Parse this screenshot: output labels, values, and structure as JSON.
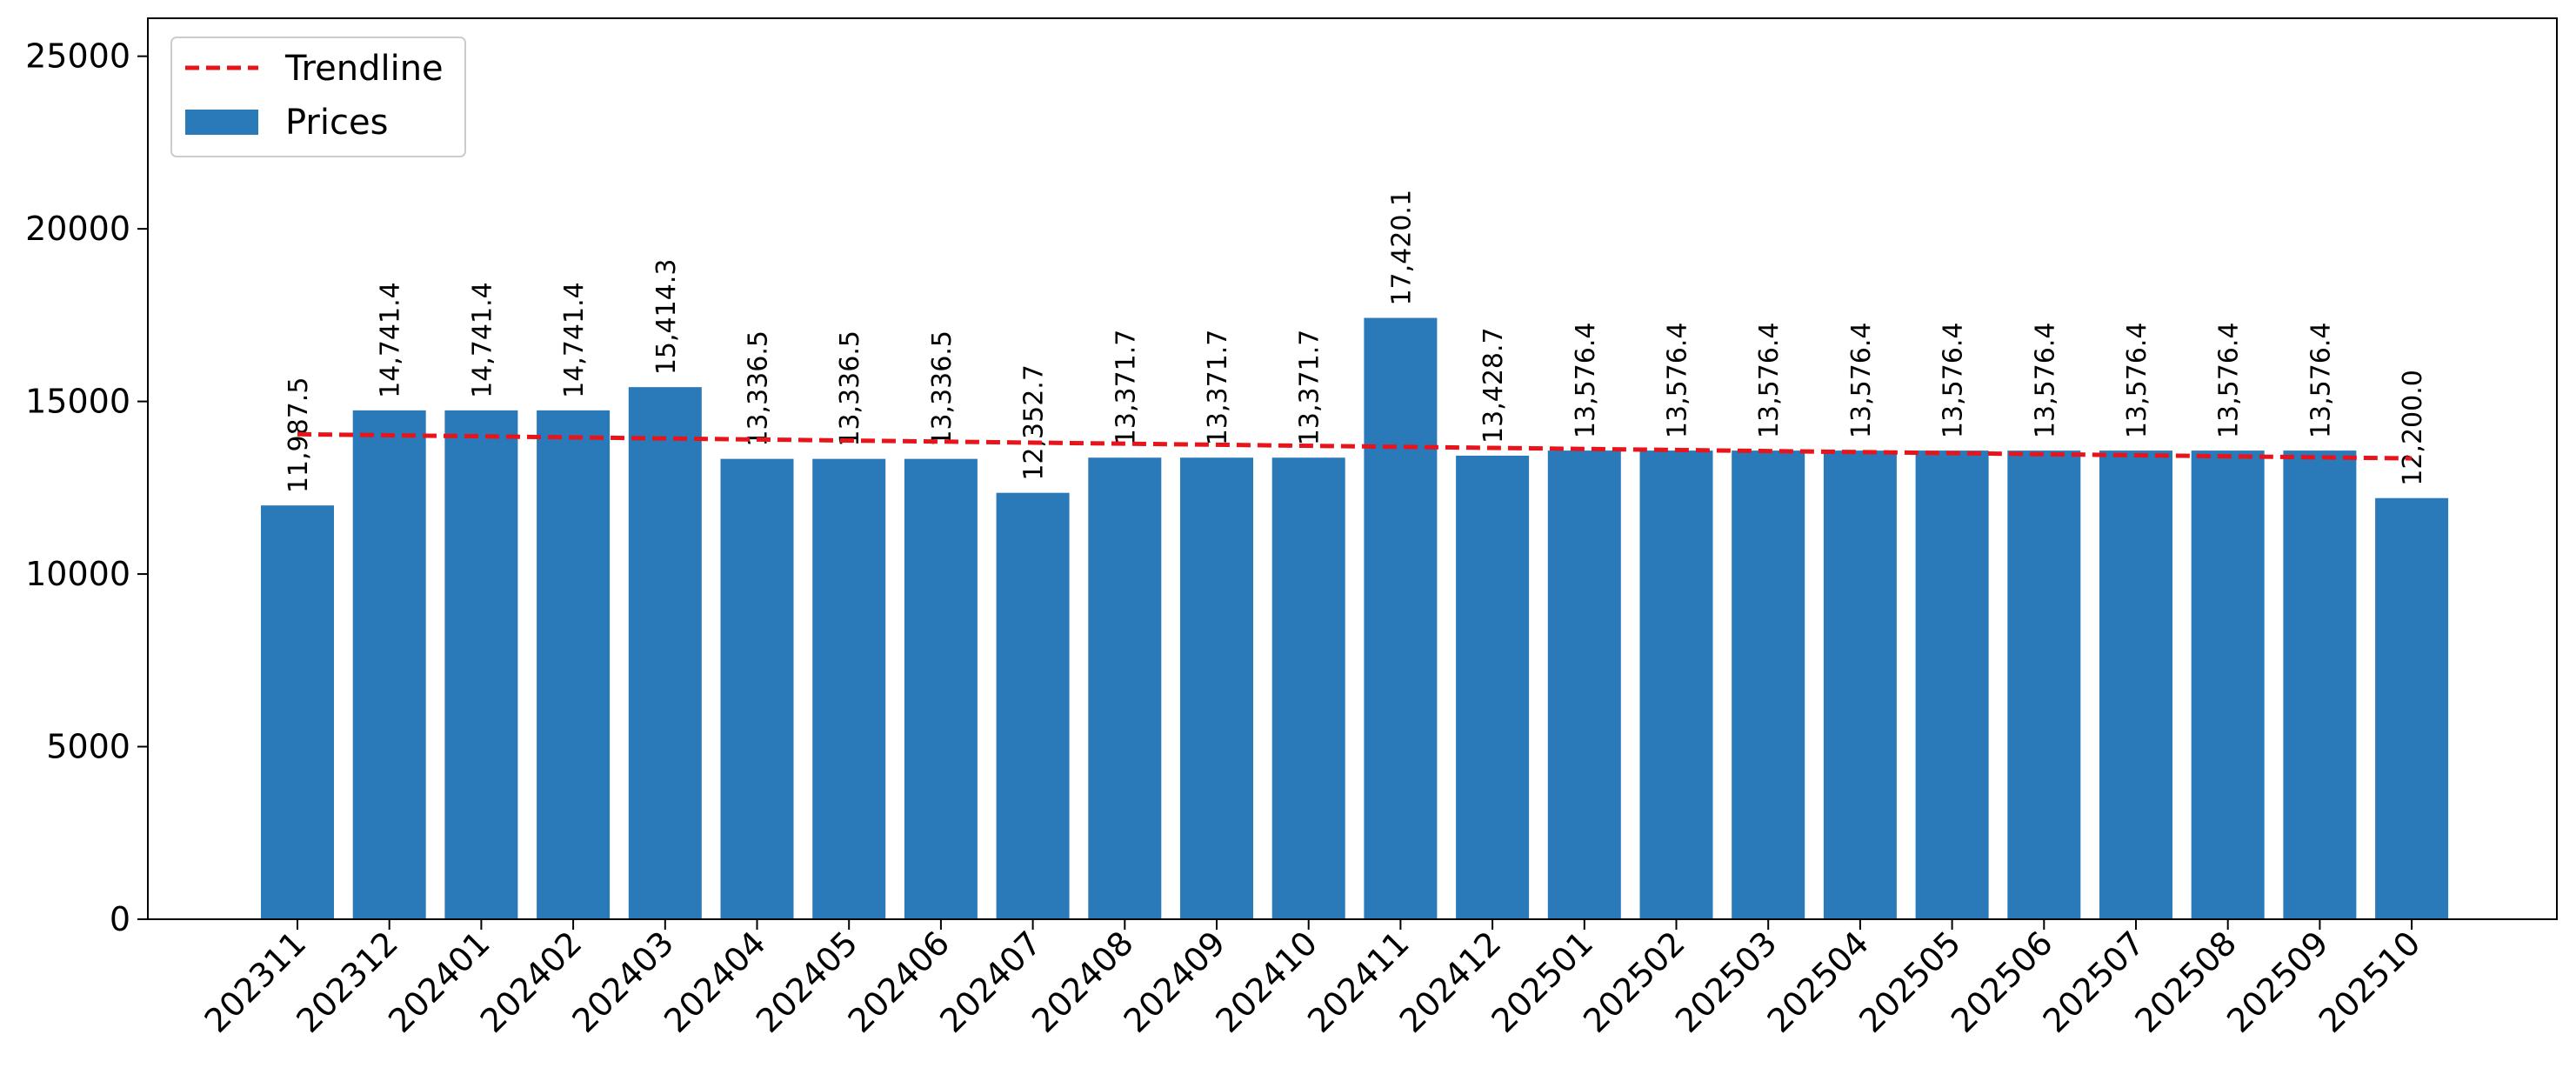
{
  "chart_data": {
    "type": "bar",
    "title": "",
    "xlabel": "",
    "ylabel": "",
    "ylim": [
      0,
      26100
    ],
    "yticks": [
      0,
      5000,
      10000,
      15000,
      20000,
      25000
    ],
    "grid": false,
    "legend_placement": "top-left",
    "categories": [
      "202311",
      "202312",
      "202401",
      "202402",
      "202403",
      "202404",
      "202405",
      "202406",
      "202407",
      "202408",
      "202409",
      "202410",
      "202411",
      "202412",
      "202501",
      "202502",
      "202503",
      "202504",
      "202505",
      "202506",
      "202507",
      "202508",
      "202509",
      "202510"
    ],
    "series": [
      {
        "name": "Prices",
        "type": "bar",
        "color": "#2a7aba",
        "values": [
          11987.5,
          14741.4,
          14741.4,
          14741.4,
          15414.3,
          13336.5,
          13336.5,
          13336.5,
          12352.7,
          13371.7,
          13371.7,
          13371.7,
          17420.1,
          13428.7,
          13576.4,
          13576.4,
          13576.4,
          13576.4,
          13576.4,
          13576.4,
          13576.4,
          13576.4,
          13576.4,
          12200.0
        ],
        "labels": [
          "11,987.5",
          "14,741.4",
          "14,741.4",
          "14,741.4",
          "15,414.3",
          "13,336.5",
          "13,336.5",
          "13,336.5",
          "12,352.7",
          "13,371.7",
          "13,371.7",
          "13,371.7",
          "17,420.1",
          "13,428.7",
          "13,576.4",
          "13,576.4",
          "13,576.4",
          "13,576.4",
          "13,576.4",
          "13,576.4",
          "13,576.4",
          "13,576.4",
          "13,576.4",
          "12,200.0"
        ]
      },
      {
        "name": "Trendline",
        "type": "line",
        "style": "dashed",
        "color": "#e8141c",
        "start": 14050,
        "end": 13350
      }
    ]
  }
}
